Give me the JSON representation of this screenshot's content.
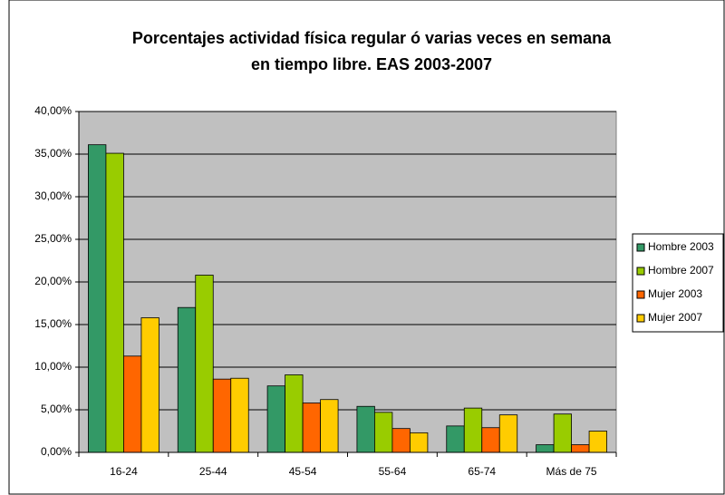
{
  "chart_data": {
    "type": "bar",
    "title": [
      "Porcentajes actividad física regular ó varias veces en semana",
      "en tiempo libre. EAS 2003-2007"
    ],
    "categories": [
      "16-24",
      "25-44",
      "45-54",
      "55-64",
      "65-74",
      "Más de 75"
    ],
    "series": [
      {
        "name": "Hombre 2003",
        "color": "#339966",
        "values": [
          36.1,
          17.0,
          7.8,
          5.4,
          3.1,
          0.9
        ]
      },
      {
        "name": "Hombre 2007",
        "color": "#99cc00",
        "values": [
          35.1,
          20.8,
          9.1,
          4.7,
          5.2,
          4.5
        ]
      },
      {
        "name": "Mujer 2003",
        "color": "#ff6600",
        "values": [
          11.3,
          8.6,
          5.8,
          2.8,
          2.9,
          0.9
        ]
      },
      {
        "name": "Mujer 2007",
        "color": "#ffcc00",
        "values": [
          15.8,
          8.7,
          6.2,
          2.3,
          4.4,
          2.5
        ]
      }
    ],
    "ylim": [
      0,
      40
    ],
    "yticks": [
      {
        "value": 0,
        "label": "0,00%"
      },
      {
        "value": 5,
        "label": "5,00%"
      },
      {
        "value": 10,
        "label": "10,00%"
      },
      {
        "value": 15,
        "label": "15,00%"
      },
      {
        "value": 20,
        "label": "20,00%"
      },
      {
        "value": 25,
        "label": "25,00%"
      },
      {
        "value": 30,
        "label": "30,00%"
      },
      {
        "value": 35,
        "label": "35,00%"
      },
      {
        "value": 40,
        "label": "40,00%"
      }
    ],
    "grid": true,
    "legend": "right"
  }
}
